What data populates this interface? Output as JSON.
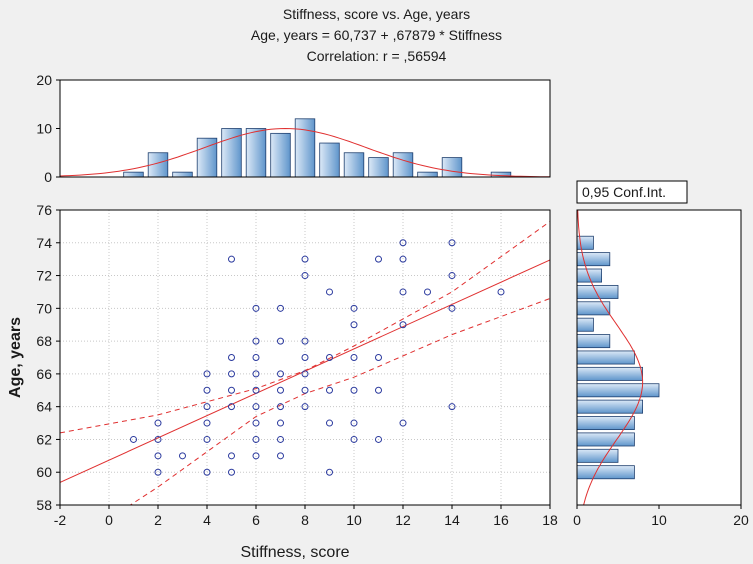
{
  "header": {
    "title": "Stiffness, score vs. Age, years",
    "equation": "Age, years = 60,737 + ,67879 * Stiffness",
    "correlation": "Correlation: r = ,56594"
  },
  "conf_label": "0,95 Conf.Int.",
  "colors": {
    "background": "#f0f0f0",
    "plot_bg": "#ffffff",
    "point": "#2b3a9e",
    "line": "#e03030",
    "bar_light": "#dce9f7",
    "bar_dark": "#5f95cb",
    "bar_edge": "#1e3f6e",
    "grid": "#c8c8c8"
  },
  "chart_data": [
    {
      "id": "scatter",
      "type": "scatter",
      "xlabel": "Stiffness, score",
      "ylabel": "Age, years",
      "xlim": [
        -2,
        18
      ],
      "ylim": [
        58,
        76
      ],
      "xticks": [
        "-2",
        "0",
        "2",
        "4",
        "6",
        "8",
        "10",
        "12",
        "14",
        "16",
        "18"
      ],
      "yticks": [
        "58",
        "60",
        "62",
        "64",
        "66",
        "68",
        "70",
        "72",
        "74",
        "76"
      ],
      "grid": true,
      "regression": {
        "intercept": 60.737,
        "slope": 0.67879,
        "r": 0.56594
      },
      "conf_band": {
        "upper": [
          [
            -2,
            62.4
          ],
          [
            2,
            63.5
          ],
          [
            6,
            65.1
          ],
          [
            8,
            66.2
          ],
          [
            10,
            67.7
          ],
          [
            14,
            71.0
          ],
          [
            18,
            75.3
          ]
        ],
        "lower": [
          [
            -2,
            55.2
          ],
          [
            2,
            59.1
          ],
          [
            6,
            63.4
          ],
          [
            8,
            64.8
          ],
          [
            10,
            65.8
          ],
          [
            14,
            68.4
          ],
          [
            18,
            70.6
          ]
        ]
      },
      "points": [
        [
          1,
          62
        ],
        [
          2,
          60
        ],
        [
          2,
          61
        ],
        [
          2,
          62
        ],
        [
          2,
          63
        ],
        [
          3,
          61
        ],
        [
          4,
          60
        ],
        [
          4,
          62
        ],
        [
          4,
          63
        ],
        [
          4,
          64
        ],
        [
          4,
          65
        ],
        [
          4,
          66
        ],
        [
          5,
          60
        ],
        [
          5,
          61
        ],
        [
          5,
          64
        ],
        [
          5,
          65
        ],
        [
          5,
          66
        ],
        [
          5,
          67
        ],
        [
          5,
          73
        ],
        [
          6,
          61
        ],
        [
          6,
          62
        ],
        [
          6,
          63
        ],
        [
          6,
          64
        ],
        [
          6,
          65
        ],
        [
          6,
          66
        ],
        [
          6,
          67
        ],
        [
          6,
          68
        ],
        [
          6,
          70
        ],
        [
          7,
          61
        ],
        [
          7,
          62
        ],
        [
          7,
          63
        ],
        [
          7,
          64
        ],
        [
          7,
          65
        ],
        [
          7,
          66
        ],
        [
          7,
          68
        ],
        [
          7,
          70
        ],
        [
          8,
          64
        ],
        [
          8,
          65
        ],
        [
          8,
          66
        ],
        [
          8,
          67
        ],
        [
          8,
          68
        ],
        [
          8,
          72
        ],
        [
          8,
          73
        ],
        [
          9,
          60
        ],
        [
          9,
          63
        ],
        [
          9,
          65
        ],
        [
          9,
          67
        ],
        [
          9,
          71
        ],
        [
          10,
          62
        ],
        [
          10,
          63
        ],
        [
          10,
          65
        ],
        [
          10,
          67
        ],
        [
          10,
          69
        ],
        [
          10,
          70
        ],
        [
          11,
          62
        ],
        [
          11,
          65
        ],
        [
          11,
          67
        ],
        [
          11,
          73
        ],
        [
          12,
          63
        ],
        [
          12,
          69
        ],
        [
          12,
          71
        ],
        [
          12,
          73
        ],
        [
          12,
          74
        ],
        [
          13,
          71
        ],
        [
          14,
          64
        ],
        [
          14,
          70
        ],
        [
          14,
          72
        ],
        [
          14,
          74
        ],
        [
          16,
          71
        ]
      ]
    },
    {
      "id": "top-histogram",
      "type": "bar",
      "xlim": [
        -2,
        18
      ],
      "ylim": [
        0,
        20
      ],
      "yticks": [
        "0",
        "10",
        "20"
      ],
      "bins": [
        0,
        1,
        2,
        3,
        4,
        5,
        6,
        7,
        8,
        9,
        10,
        11,
        12,
        13,
        14,
        16
      ],
      "values": [
        0,
        1,
        5,
        1,
        8,
        10,
        10,
        9,
        12,
        7,
        5,
        4,
        5,
        1,
        4,
        1
      ],
      "fit": {
        "type": "normal",
        "mean": 7.2,
        "sd": 3.3,
        "peak": 10
      }
    },
    {
      "id": "right-histogram",
      "type": "bar",
      "orientation": "horizontal",
      "xlim": [
        0,
        20
      ],
      "xticks": [
        "0",
        "10",
        "20"
      ],
      "bins": [
        60,
        61,
        62,
        63,
        64,
        65,
        66,
        67,
        68,
        69,
        70,
        71,
        72,
        73,
        74
      ],
      "values": [
        7,
        5,
        7,
        7,
        8,
        10,
        8,
        7,
        4,
        2,
        4,
        5,
        3,
        4,
        2
      ],
      "fit": {
        "type": "normal",
        "mean": 65.5,
        "sd": 3.5,
        "peak": 8
      }
    }
  ]
}
